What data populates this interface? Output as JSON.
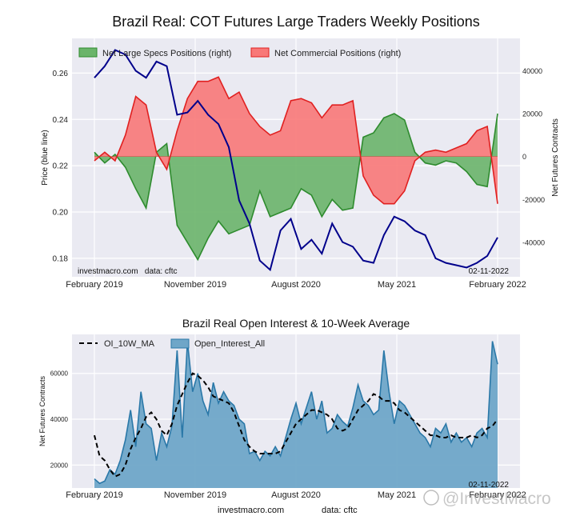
{
  "page": {
    "footer_site": "investmacro.com",
    "footer_data": "data: cftc",
    "watermark": "@InvestMacro"
  },
  "colors": {
    "panel_bg": "#eaeaf2",
    "price": "#00008b",
    "specs_fill": "#6ab46a",
    "specs_line": "#2e8b2e",
    "comm_fill": "#f87878",
    "comm_line": "#e02020",
    "oi_fill": "#6fa6c8",
    "oi_line": "#2a78a8",
    "ma_line": "#000000"
  },
  "chart_data": [
    {
      "type": "line",
      "title": "Brazil Real: COT Futures Large Traders Weekly Positions",
      "ylabel_left": "Price (blue line)",
      "ylabel_right": "Net Futures Contracts",
      "x_tick_labels": [
        "February 2019",
        "November 2019",
        "August 2020",
        "May 2021",
        "February 2022"
      ],
      "ylim_left": [
        0.172,
        0.275
      ],
      "yticks_left": [
        "0.18",
        "0.20",
        "0.22",
        "0.24",
        "0.26"
      ],
      "ylim_right": [
        -56000,
        55000
      ],
      "yticks_right": [
        "-40000",
        "-20000",
        "0",
        "20000",
        "40000"
      ],
      "legend": [
        "Net Large Specs Positions (right)",
        "Net Commercial Positions (right)"
      ],
      "annotation_left": "investmacro.com   data: cftc",
      "annotation_right": "02-11-2022",
      "grid": true,
      "price_series": {
        "name": "Price (blue line)",
        "x_week": [
          0,
          4,
          8,
          12,
          16,
          20,
          24,
          28,
          32,
          36,
          40,
          44,
          48,
          52,
          56,
          60,
          64,
          68,
          72,
          76,
          80,
          84,
          88,
          92,
          96,
          100,
          104,
          108,
          112,
          116,
          120,
          124,
          128,
          132,
          136,
          140,
          144,
          148,
          152,
          156
        ],
        "values": [
          0.258,
          0.263,
          0.27,
          0.268,
          0.261,
          0.258,
          0.265,
          0.263,
          0.242,
          0.243,
          0.248,
          0.242,
          0.238,
          0.228,
          0.205,
          0.195,
          0.179,
          0.175,
          0.192,
          0.197,
          0.184,
          0.188,
          0.182,
          0.195,
          0.187,
          0.185,
          0.179,
          0.178,
          0.19,
          0.198,
          0.196,
          0.192,
          0.19,
          0.18,
          0.178,
          0.177,
          0.176,
          0.178,
          0.181,
          0.189
        ]
      },
      "series": [
        {
          "name": "Net Large Specs Positions (right)",
          "x_week": [
            0,
            4,
            8,
            12,
            16,
            20,
            24,
            28,
            32,
            36,
            40,
            44,
            48,
            52,
            56,
            60,
            64,
            68,
            72,
            76,
            80,
            84,
            88,
            92,
            96,
            100,
            104,
            108,
            112,
            116,
            120,
            124,
            128,
            132,
            136,
            140,
            144,
            148,
            152,
            156
          ],
          "values": [
            2000,
            -3000,
            1000,
            -5000,
            -15000,
            -24000,
            2000,
            6000,
            -32000,
            -40000,
            -48000,
            -38000,
            -30000,
            -36000,
            -34000,
            -32000,
            -16000,
            -28000,
            -26000,
            -24000,
            -15000,
            -18000,
            -28000,
            -20000,
            -25000,
            -24000,
            9000,
            11000,
            18000,
            20000,
            17000,
            2000,
            -3000,
            -4000,
            -2000,
            -3000,
            -7000,
            -13000,
            -14000,
            20000
          ]
        },
        {
          "name": "Net Commercial Positions (right)",
          "x_week": [
            0,
            4,
            8,
            12,
            16,
            20,
            24,
            28,
            32,
            36,
            40,
            44,
            48,
            52,
            56,
            60,
            64,
            68,
            72,
            76,
            80,
            84,
            88,
            92,
            96,
            100,
            104,
            108,
            112,
            116,
            120,
            124,
            128,
            132,
            136,
            140,
            144,
            148,
            152,
            156
          ],
          "values": [
            -2000,
            2000,
            -2000,
            10000,
            28000,
            24000,
            2000,
            -6000,
            12000,
            27000,
            35000,
            35000,
            37000,
            27000,
            30000,
            20000,
            14000,
            10000,
            12000,
            26000,
            27000,
            25000,
            18000,
            24000,
            24000,
            26000,
            -9000,
            -18000,
            -22000,
            -22000,
            -16000,
            -2000,
            2000,
            3000,
            2000,
            4000,
            6000,
            12000,
            14000,
            -22000
          ]
        }
      ]
    },
    {
      "type": "area",
      "title": "Brazil Real Open Interest & 10-Week Average",
      "ylabel": "Net Futures Contracts",
      "x_tick_labels": [
        "February 2019",
        "November 2019",
        "August 2020",
        "May 2021",
        "February 2022"
      ],
      "ylim": [
        10000,
        77000
      ],
      "yticks": [
        "20000",
        "40000",
        "60000"
      ],
      "legend": [
        "OI_10W_MA",
        "Open_Interest_All"
      ],
      "annotation_right": "02-11-2022",
      "grid": true,
      "series": [
        {
          "name": "Open_Interest_All",
          "x_week": [
            0,
            2,
            4,
            6,
            8,
            10,
            12,
            14,
            16,
            18,
            20,
            22,
            24,
            26,
            28,
            30,
            32,
            34,
            36,
            38,
            40,
            42,
            44,
            46,
            48,
            50,
            52,
            54,
            56,
            58,
            60,
            62,
            64,
            66,
            68,
            70,
            72,
            74,
            76,
            78,
            80,
            82,
            84,
            86,
            88,
            90,
            92,
            94,
            96,
            98,
            100,
            102,
            104,
            106,
            108,
            110,
            112,
            114,
            116,
            118,
            120,
            122,
            124,
            126,
            128,
            130,
            132,
            134,
            136,
            138,
            140,
            142,
            144,
            146,
            148,
            150,
            152,
            154,
            156
          ],
          "values": [
            14000,
            12000,
            13000,
            18000,
            16000,
            22000,
            31000,
            44000,
            28000,
            52000,
            38000,
            36000,
            22000,
            34000,
            28000,
            37000,
            70000,
            32000,
            74000,
            52000,
            60000,
            48000,
            42000,
            56000,
            47000,
            52000,
            48000,
            46000,
            40000,
            38000,
            25000,
            26000,
            22000,
            26000,
            24000,
            28000,
            24000,
            32000,
            40000,
            47000,
            38000,
            45000,
            52000,
            40000,
            48000,
            34000,
            36000,
            42000,
            39000,
            37000,
            45000,
            55000,
            48000,
            46000,
            42000,
            44000,
            70000,
            52000,
            38000,
            48000,
            46000,
            42000,
            38000,
            34000,
            32000,
            28000,
            36000,
            34000,
            38000,
            30000,
            34000,
            30000,
            32000,
            28000,
            34000,
            36000,
            32000,
            74000,
            64000
          ]
        },
        {
          "name": "OI_10W_MA",
          "x_week": [
            0,
            2,
            4,
            6,
            8,
            10,
            12,
            14,
            16,
            18,
            20,
            22,
            24,
            26,
            28,
            30,
            32,
            34,
            36,
            38,
            40,
            42,
            44,
            46,
            48,
            50,
            52,
            54,
            56,
            58,
            60,
            62,
            64,
            66,
            68,
            70,
            72,
            74,
            76,
            78,
            80,
            82,
            84,
            86,
            88,
            90,
            92,
            94,
            96,
            98,
            100,
            102,
            104,
            106,
            108,
            110,
            112,
            114,
            116,
            118,
            120,
            122,
            124,
            126,
            128,
            130,
            132,
            134,
            136,
            138,
            140,
            142,
            144,
            146,
            148,
            150,
            152,
            154,
            156
          ],
          "values": [
            33000,
            24000,
            22000,
            18000,
            15000,
            16000,
            20000,
            27000,
            32000,
            36000,
            41000,
            43000,
            40000,
            35000,
            33000,
            38000,
            46000,
            51000,
            56000,
            60000,
            59000,
            57000,
            54000,
            50000,
            49000,
            48000,
            47000,
            43000,
            37000,
            31000,
            28000,
            26000,
            25000,
            25000,
            25000,
            25000,
            26000,
            30000,
            34000,
            38000,
            40000,
            42000,
            44000,
            44000,
            43000,
            42000,
            40000,
            36000,
            35000,
            36000,
            40000,
            44000,
            46000,
            48000,
            51000,
            50000,
            48000,
            48000,
            47000,
            44000,
            43000,
            41000,
            39000,
            37000,
            35000,
            33000,
            33000,
            32000,
            32000,
            33000,
            32000,
            32000,
            32000,
            33000,
            32000,
            33000,
            36000,
            37000,
            40000
          ]
        }
      ]
    }
  ]
}
